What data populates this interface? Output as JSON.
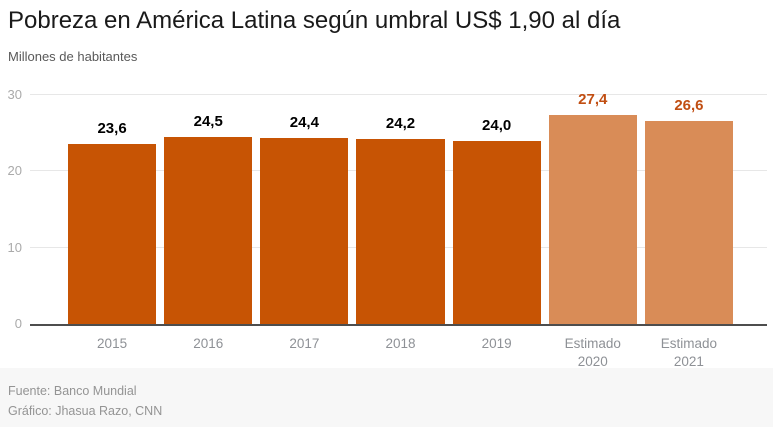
{
  "header": {
    "title": "Pobreza en América Latina según umbral US$ 1,90 al día",
    "subtitle": "Millones de habitantes"
  },
  "chart_data": {
    "type": "bar",
    "title": "Pobreza en América Latina según umbral US$ 1,90 al día",
    "subtitle": "Millones de habitantes",
    "categories": [
      "2015",
      "2016",
      "2017",
      "2018",
      "2019",
      "Estimado\n2020",
      "Estimado\n2021"
    ],
    "values": [
      23.6,
      24.5,
      24.4,
      24.2,
      24.0,
      27.4,
      26.6
    ],
    "value_labels": [
      "23,6",
      "24,5",
      "24,4",
      "24,2",
      "24,0",
      "27,4",
      "26,6"
    ],
    "estimated": [
      false,
      false,
      false,
      false,
      false,
      true,
      true
    ],
    "xlabel": "",
    "ylabel": "Millones de habitantes",
    "ylim": [
      0,
      30
    ],
    "yticks": [
      0,
      10,
      20,
      30
    ],
    "grid": true,
    "legend": false,
    "colors": {
      "bar": "#c75404",
      "bar_estimated": "#d98c57",
      "value_label": "#000000",
      "value_label_estimated": "#c14e12",
      "axis_line": "#4d4d4d",
      "gridline": "#e7e7e7"
    }
  },
  "footer": {
    "source": "Fuente: Banco Mundial",
    "credit": "Gráfico: Jhasua Razo, CNN"
  }
}
